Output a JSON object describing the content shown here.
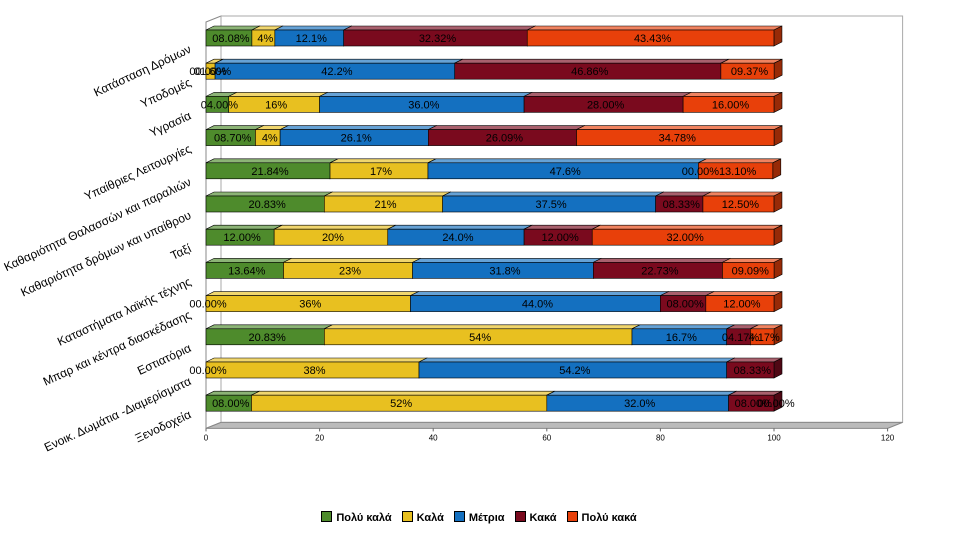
{
  "chart_data": {
    "type": "bar",
    "orientation": "horizontal",
    "stacked": true,
    "three_d": true,
    "categories": [
      "Κατάσταση Δρόμων",
      "Υποδομές",
      "Υγρασία",
      "Υπαίθριες Λειτουργίες",
      "Καθαριότητα Θαλασσών και παραλιών",
      "Καθαριότητα δρόμων και υπαίθρου",
      "Ταξί",
      "Καταστήματα λαϊκής τέχνης",
      "Μπαρ και κέντρα διασκέδασης",
      "Εστιατόρια",
      "Ενοικ. Δωμάτια -Διαμερίσματα",
      "Ξενοδοχεία"
    ],
    "series": [
      {
        "name": "Πολύ καλά",
        "color": "#4e8b2c",
        "values": [
          8.08,
          0.0,
          4.0,
          8.7,
          21.84,
          20.83,
          12.0,
          13.64,
          0.0,
          20.83,
          0.0,
          8.0
        ],
        "labels": [
          "08.08%",
          "00.00%",
          "04.00%",
          "08.70%",
          "21.84%",
          "20.83%",
          "12.00%",
          "13.64%",
          "00.00%",
          "20.83%",
          "00.00%",
          "08.00%"
        ]
      },
      {
        "name": "Καλά",
        "color": "#e8c020",
        "values": [
          4.04,
          1.6,
          16.0,
          4.35,
          17.24,
          20.83,
          20.0,
          22.73,
          36.0,
          54.17,
          37.5,
          52.0
        ],
        "labels": [
          "4%",
          "01.60%",
          "16%",
          "4%",
          "17%",
          "21%",
          "20%",
          "23%",
          "36%",
          "54%",
          "38%",
          "52%"
        ]
      },
      {
        "name": "Μέτρια",
        "color": "#1470c0",
        "values": [
          12.12,
          42.19,
          36.0,
          26.09,
          47.61,
          37.5,
          24.0,
          31.82,
          44.0,
          16.67,
          54.17,
          32.0
        ],
        "labels": [
          "12.1%",
          "42.2%",
          "36.0%",
          "26.1%",
          "47.6%",
          "37.5%",
          "24.0%",
          "31.8%",
          "44.0%",
          "16.7%",
          "54.2%",
          "32.0%"
        ]
      },
      {
        "name": "Κακά",
        "color": "#7a0a1e",
        "values": [
          32.32,
          46.86,
          28.0,
          26.09,
          0.0,
          8.33,
          12.0,
          22.73,
          8.0,
          4.17,
          8.33,
          8.0
        ],
        "labels": [
          "32.32%",
          "46.86%",
          "28.00%",
          "26.09%",
          "00.00%",
          "08.33%",
          "12.00%",
          "22.73%",
          "08.00%",
          "04.17%",
          "08.33%",
          "08.00%"
        ]
      },
      {
        "name": "Πολύ κακά",
        "color": "#e8400a",
        "values": [
          43.43,
          9.37,
          16.0,
          34.78,
          13.1,
          12.5,
          32.0,
          9.09,
          12.0,
          4.17,
          0.0,
          0.0
        ],
        "labels": [
          "43.43%",
          "09.37%",
          "16.00%",
          "34.78%",
          "13.10%",
          "12.50%",
          "32.00%",
          "09.09%",
          "12.00%",
          "4.17%",
          "",
          "00.00%"
        ]
      }
    ],
    "x_ticks": [
      "0",
      "20",
      "40",
      "60",
      "80",
      "100",
      "120"
    ],
    "xlim": [
      0,
      120
    ],
    "grid": false,
    "legend_position": "bottom"
  }
}
